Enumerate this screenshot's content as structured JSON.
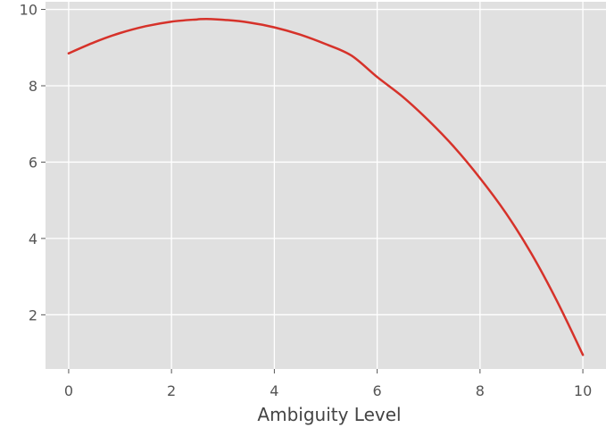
{
  "chart_data": {
    "type": "line",
    "title": "",
    "xlabel": "Ambiguity Level",
    "ylabel": "",
    "xlim": [
      -0.45,
      10.45
    ],
    "ylim": [
      0.58,
      10.2
    ],
    "x_ticks": [
      0,
      2,
      4,
      6,
      8,
      10
    ],
    "y_ticks": [
      2,
      4,
      6,
      8,
      10
    ],
    "x_tick_labels": [
      "0",
      "2",
      "4",
      "6",
      "8",
      "10"
    ],
    "y_tick_labels": [
      "2",
      "4",
      "6",
      "8",
      "10"
    ],
    "grid": true,
    "style": "ggplot",
    "background_color": "#e0e0e0",
    "grid_color": "#ffffff",
    "series": [
      {
        "color": "#d6322a",
        "x": [
          0,
          0.5,
          1,
          1.5,
          2,
          2.5,
          2.67,
          3,
          3.5,
          4,
          4.5,
          5,
          5.5,
          6,
          6.5,
          7,
          7.5,
          8,
          8.5,
          9,
          9.5,
          10
        ],
        "y": [
          8.85,
          9.14,
          9.38,
          9.56,
          9.68,
          9.74,
          9.75,
          9.73,
          9.66,
          9.53,
          9.34,
          9.09,
          8.79,
          8.23,
          7.71,
          7.09,
          6.39,
          5.58,
          4.67,
          3.6,
          2.35,
          0.95
        ]
      }
    ]
  }
}
